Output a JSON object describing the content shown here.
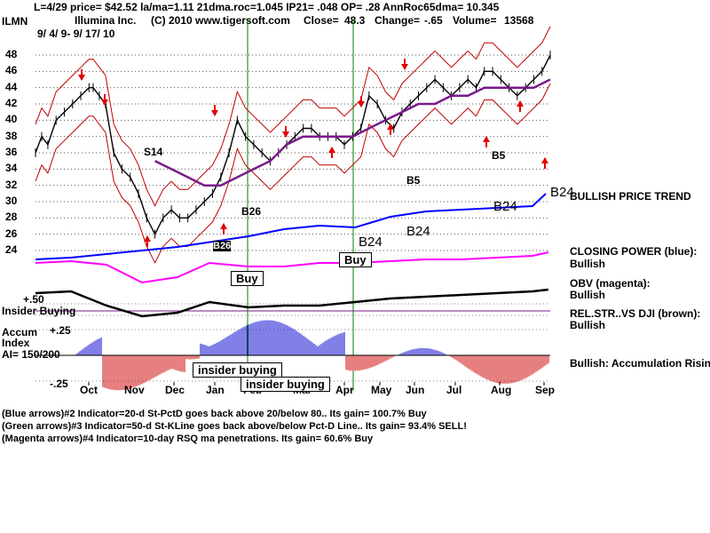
{
  "header": {
    "line1": "L=4/29  price= $42.52  la/ma=1.11 21dma.roc=1.045 IP21= .048 OP= .28 AnnRoc65dma= 10.345",
    "ticker": "ILMN",
    "company": "Illumina Inc.",
    "copyright": "(C) 2010 www.tigersoft.com",
    "close_label": "Close=",
    "close_value": "48.3",
    "change_label": "Change=",
    "change_value": "-.65",
    "volume_label": "Volume=",
    "volume_value": "13568",
    "date_range": "9/ 4/ 9- 9/ 17/ 10"
  },
  "right_labels": {
    "trend": "BULLISH PRICE TREND",
    "closing_power_title": "CLOSING POWER (blue):",
    "closing_power_value": "Bullish",
    "obv_title": "OBV (magenta):",
    "obv_value": "Bullish",
    "relstr_title": "REL.STR..VS DJI (brown):",
    "relstr_value": "Bullish",
    "accum_summary": "Bullish: Accumulation Rising"
  },
  "annotations": {
    "s14": "S14",
    "b26": "B26",
    "b5_a": "B5",
    "b5_b": "B5",
    "b24_a": "B24",
    "b24_b": "B24",
    "b24_c": "B24",
    "b24_d": "B24",
    "b2x": "B26",
    "buy_1": "Buy",
    "buy_2": "Buy",
    "insider_buying_label": "Insider Buying",
    "insider_buying_1": "insider buying",
    "insider_buying_2": "insider buying",
    "accum_title_1": "Accum",
    "accum_title_2": "Index",
    "accum_ai": "AI= 150/200",
    "plus50": "+.50",
    "plus25": "+.25",
    "minus25": "-.25"
  },
  "legend": {
    "line1": "(Blue arrows)#2 Indicator=20-d St-PctD goes back above 20/below 80.. Its gain= 100.7% Buy",
    "line2": "(Green arrows)#3 Indicator=50-d St-KLine goes back above/below Pct-D Line.. Its gain= 93.4% SELL!",
    "line3": "(Magenta arrows)#4 Indicator=10-day RSQ ma penetrations. Its gain= 60.6% Buy"
  },
  "colors": {
    "price": "#000000",
    "bands": "#c00000",
    "ma65": "#7a1a8c",
    "closing_power": "#0000ff",
    "obv": "#ff00ff",
    "relstr": "#8b2500",
    "accum_pos": "#0000cc",
    "accum_neg": "#cc0000",
    "signal_line": "#008000",
    "grid": "#555555"
  },
  "chart_data": {
    "type": "line",
    "y_axis_ticks": [
      24,
      26,
      28,
      30,
      32,
      34,
      36,
      38,
      40,
      42,
      44,
      46,
      48
    ],
    "ylim": [
      23,
      50
    ],
    "x_month_labels": [
      "Oct",
      "Nov",
      "Dec",
      "Jan",
      "Feb",
      "Mar",
      "Apr",
      "May",
      "Jun",
      "Jul",
      "Aug",
      "Sep"
    ],
    "grid": true,
    "series": [
      {
        "key": "price",
        "x": [
          0,
          3,
          6,
          10,
          14,
          18,
          22,
          26,
          28,
          31,
          34,
          38,
          42,
          46,
          50,
          54,
          58,
          62,
          66,
          70,
          74,
          78,
          82,
          86,
          90,
          94,
          98,
          102,
          106,
          110,
          114,
          118,
          122,
          126,
          130,
          134,
          138,
          142,
          146,
          150,
          154,
          158,
          162,
          166,
          170,
          174,
          178,
          182,
          186,
          190,
          194,
          198,
          202,
          206,
          210,
          214,
          218,
          222,
          226,
          230,
          234,
          238,
          242,
          246,
          250
        ],
        "values": [
          36,
          38,
          37,
          40,
          41,
          42,
          43,
          44,
          44,
          43,
          42,
          36,
          34,
          33,
          31,
          28,
          26,
          28,
          29,
          28,
          28,
          29,
          30,
          31,
          33,
          36,
          40,
          38,
          37,
          36,
          35,
          36,
          37,
          38,
          39,
          39,
          38,
          38,
          38,
          37,
          38,
          39,
          43,
          42,
          40,
          39,
          41,
          42,
          43,
          44,
          45,
          44,
          43,
          44,
          45,
          44,
          46,
          46,
          45,
          44,
          43,
          44,
          45,
          46,
          48
        ]
      },
      {
        "key": "ma65",
        "x": [
          58,
          66,
          74,
          82,
          90,
          98,
          106,
          114,
          122,
          130,
          138,
          146,
          154,
          162,
          170,
          178,
          186,
          194,
          202,
          210,
          218,
          226,
          234,
          242,
          250
        ],
        "values": [
          35,
          34,
          33,
          32,
          32,
          33,
          34,
          35,
          37,
          38,
          38,
          38,
          38,
          39,
          40,
          41,
          42,
          42,
          43,
          43,
          44,
          44,
          44,
          44,
          45
        ]
      }
    ]
  }
}
